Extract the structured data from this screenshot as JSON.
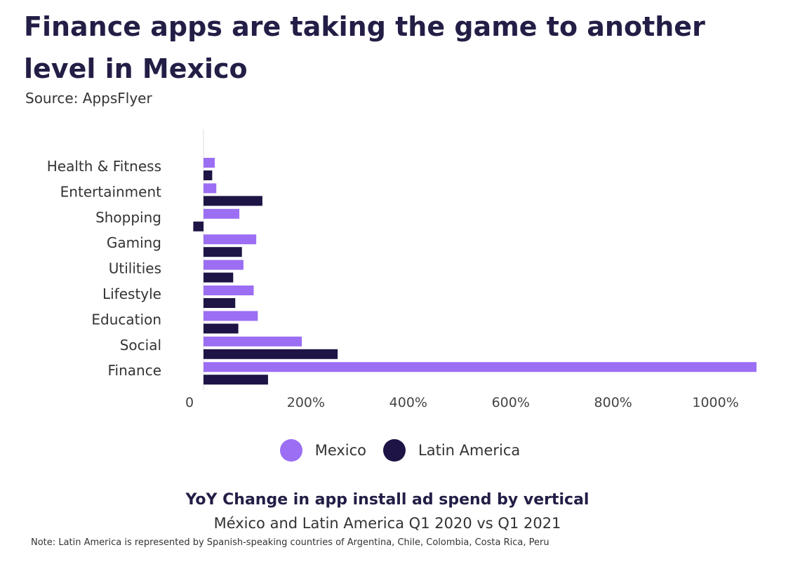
{
  "title": "Finance apps are taking the game to another level in Mexico",
  "source": "Source: AppsFlyer",
  "caption_title": "YoY Change in app install ad spend by vertical",
  "caption_subtitle": "México and Latin America Q1 2020 vs Q1 2021",
  "note": "Note: Latin America is represented by Spanish-speaking countries of Argentina, Chile, Colombia, Costa Rica, Peru",
  "colors": {
    "mexico": "#9b6ef3",
    "latin_america": "#1e1445",
    "axis": "#dddddd"
  },
  "chart_data": {
    "type": "bar",
    "orientation": "horizontal",
    "categories": [
      "Health & Fitness",
      "Entertainment",
      "Shopping",
      "Gaming",
      "Utilities",
      "Lifestyle",
      "Education",
      "Social",
      "Finance"
    ],
    "series": [
      {
        "name": "Mexico",
        "values": [
          22,
          25,
          70,
          103,
          78,
          98,
          106,
          192,
          1080
        ]
      },
      {
        "name": "Latin America",
        "values": [
          17,
          115,
          -20,
          75,
          58,
          62,
          68,
          262,
          126
        ]
      }
    ],
    "x_ticks": [
      "0",
      "200%",
      "400%",
      "600%",
      "800%",
      "1000%"
    ],
    "xlim": [
      -20,
      1100
    ],
    "legend_position": "bottom"
  }
}
